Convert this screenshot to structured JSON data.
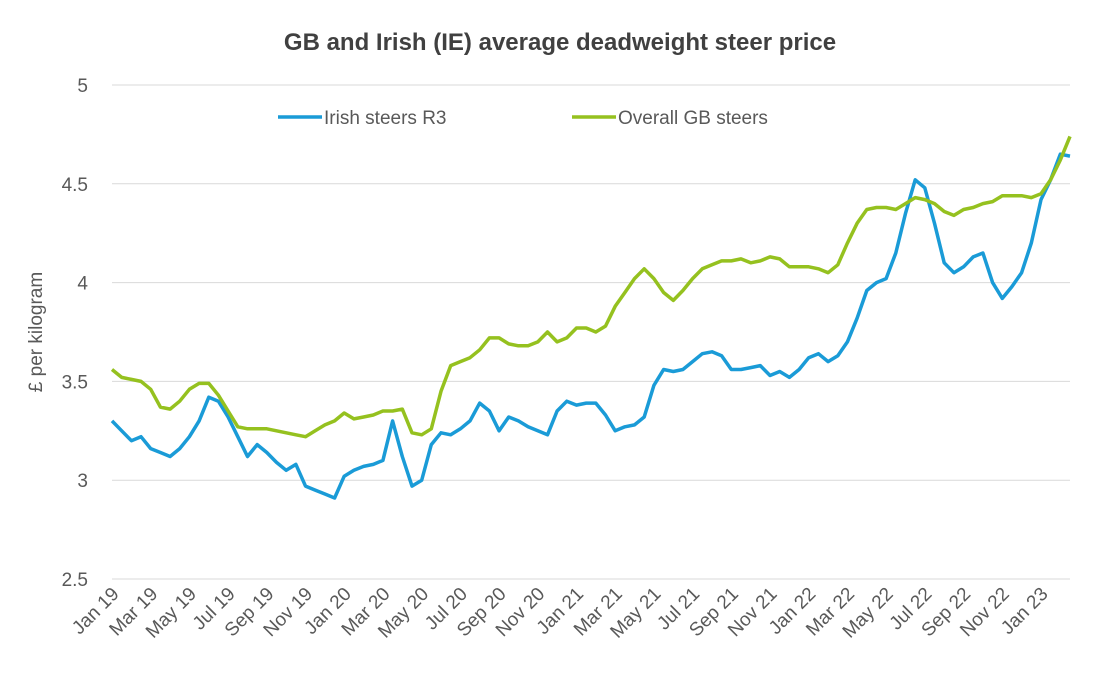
{
  "chart_data": {
    "type": "line",
    "title": "GB and Irish (IE) average deadweight steer price",
    "y_label": "£ per kilogram",
    "categories": [
      "Jan 19",
      null,
      null,
      null,
      "Mar 19",
      null,
      null,
      null,
      "May 19",
      null,
      null,
      null,
      "Jul 19",
      null,
      null,
      null,
      "Sep 19",
      null,
      null,
      null,
      "Nov 19",
      null,
      null,
      null,
      "Jan 20",
      null,
      null,
      null,
      "Mar 20",
      null,
      null,
      null,
      "May 20",
      null,
      null,
      null,
      "Jul 20",
      null,
      null,
      null,
      "Sep 20",
      null,
      null,
      null,
      "Nov 20",
      null,
      null,
      null,
      "Jan 21",
      null,
      null,
      null,
      "Mar 21",
      null,
      null,
      null,
      "May 21",
      null,
      null,
      null,
      "Jul 21",
      null,
      null,
      null,
      "Sep 21",
      null,
      null,
      null,
      "Nov 21",
      null,
      null,
      null,
      "Jan 22",
      null,
      null,
      null,
      "Mar 22",
      null,
      null,
      null,
      "May 22",
      null,
      null,
      null,
      "Jul 22",
      null,
      null,
      null,
      "Sep 22",
      null,
      null,
      null,
      "Nov 22",
      null,
      null,
      null,
      "Jan 23",
      null,
      null,
      null
    ],
    "series": [
      {
        "name": "Irish steers R3",
        "color": "#1a9bd7",
        "values": [
          3.3,
          3.25,
          3.2,
          3.22,
          3.16,
          3.14,
          3.12,
          3.16,
          3.22,
          3.3,
          3.42,
          3.4,
          3.32,
          3.22,
          3.12,
          3.18,
          3.14,
          3.09,
          3.05,
          3.08,
          2.97,
          2.95,
          2.93,
          2.91,
          3.02,
          3.05,
          3.07,
          3.08,
          3.1,
          3.3,
          3.12,
          2.97,
          3.0,
          3.18,
          3.24,
          3.23,
          3.26,
          3.3,
          3.39,
          3.35,
          3.25,
          3.32,
          3.3,
          3.27,
          3.25,
          3.23,
          3.35,
          3.4,
          3.38,
          3.39,
          3.39,
          3.33,
          3.25,
          3.27,
          3.28,
          3.32,
          3.48,
          3.56,
          3.55,
          3.56,
          3.6,
          3.64,
          3.65,
          3.63,
          3.56,
          3.56,
          3.57,
          3.58,
          3.53,
          3.55,
          3.52,
          3.56,
          3.62,
          3.64,
          3.6,
          3.63,
          3.7,
          3.82,
          3.96,
          4.0,
          4.02,
          4.15,
          4.35,
          4.52,
          4.48,
          4.3,
          4.1,
          4.05,
          4.08,
          4.13,
          4.15,
          4.0,
          3.92,
          3.98,
          4.05,
          4.2,
          4.42,
          4.52,
          4.65,
          4.64
        ]
      },
      {
        "name": "Overall GB steers",
        "color": "#95c11f",
        "values": [
          3.56,
          3.52,
          3.51,
          3.5,
          3.46,
          3.37,
          3.36,
          3.4,
          3.46,
          3.49,
          3.49,
          3.43,
          3.35,
          3.27,
          3.26,
          3.26,
          3.26,
          3.25,
          3.24,
          3.23,
          3.22,
          3.25,
          3.28,
          3.3,
          3.34,
          3.31,
          3.32,
          3.33,
          3.35,
          3.35,
          3.36,
          3.24,
          3.23,
          3.26,
          3.45,
          3.58,
          3.6,
          3.62,
          3.66,
          3.72,
          3.72,
          3.69,
          3.68,
          3.68,
          3.7,
          3.75,
          3.7,
          3.72,
          3.77,
          3.77,
          3.75,
          3.78,
          3.88,
          3.95,
          4.02,
          4.07,
          4.02,
          3.95,
          3.91,
          3.96,
          4.02,
          4.07,
          4.09,
          4.11,
          4.11,
          4.12,
          4.1,
          4.11,
          4.13,
          4.12,
          4.08,
          4.08,
          4.08,
          4.07,
          4.05,
          4.09,
          4.2,
          4.3,
          4.37,
          4.38,
          4.38,
          4.37,
          4.4,
          4.43,
          4.42,
          4.4,
          4.36,
          4.34,
          4.37,
          4.38,
          4.4,
          4.41,
          4.44,
          4.44,
          4.44,
          4.43,
          4.45,
          4.52,
          4.62,
          4.74
        ]
      }
    ],
    "ylim": [
      2.5,
      5
    ],
    "yticks": [
      2.5,
      3,
      3.5,
      4,
      4.5,
      5
    ],
    "grid": true,
    "legend": "top"
  }
}
